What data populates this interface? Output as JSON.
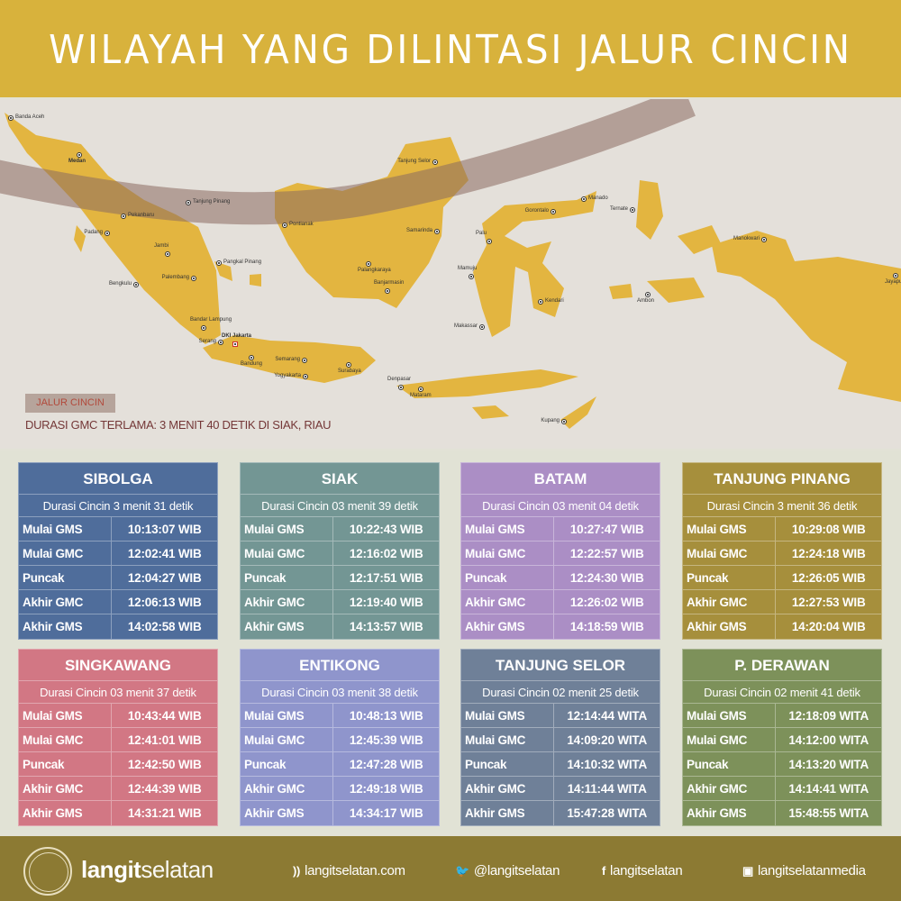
{
  "header": {
    "title": "WILAYAH YANG DILINTASI JALUR CINCIN"
  },
  "map": {
    "land_color": "#e3b540",
    "path_color": "#8a6a60",
    "cities": [
      "Banda Aceh",
      "Medan",
      "Tanjung Pinang",
      "Pekanbaru",
      "Padang",
      "Jambi",
      "Pangkal Pinang",
      "Palembang",
      "Bengkulu",
      "Bandar Lampung",
      "Serang",
      "DKI Jakarta",
      "Bandung",
      "Semarang",
      "Yogyakarta",
      "Surabaya",
      "Denpasar",
      "Mataram",
      "Pontianak",
      "Samarinda",
      "Palangkaraya",
      "Banjarmasin",
      "Tanjung Selor",
      "Gorontalo",
      "Manado",
      "Palu",
      "Mamuju",
      "Kendari",
      "Makassar",
      "Ternate",
      "Manokwari",
      "Ambon",
      "Jayapura",
      "Kupang"
    ],
    "legend_label": "JALUR CINCIN",
    "note": "DURASI GMC TERLAMA: 3 MENIT 40 DETIK DI SIAK, RIAU"
  },
  "tables": [
    {
      "name": "SIBOLGA",
      "color": "#4f6d9b",
      "duration": "Durasi Cincin 3 menit 31 detik",
      "rows": [
        {
          "label": "Mulai GMS",
          "time": "10:13:07 WIB"
        },
        {
          "label": "Mulai GMC",
          "time": "12:02:41 WIB"
        },
        {
          "label": "Puncak",
          "time": "12:04:27 WIB"
        },
        {
          "label": "Akhir GMC",
          "time": "12:06:13  WIB"
        },
        {
          "label": "Akhir GMS",
          "time": "14:02:58 WIB"
        }
      ]
    },
    {
      "name": "SIAK",
      "color": "#739694",
      "duration": "Durasi Cincin 03 menit 39 detik",
      "rows": [
        {
          "label": "Mulai GMS",
          "time": "10:22:43 WIB"
        },
        {
          "label": "Mulai GMC",
          "time": "12:16:02 WIB"
        },
        {
          "label": "Puncak",
          "time": "12:17:51 WIB"
        },
        {
          "label": "Akhir GMC",
          "time": "12:19:40 WIB"
        },
        {
          "label": "Akhir GMS",
          "time": "14:13:57 WIB"
        }
      ]
    },
    {
      "name": "BATAM",
      "color": "#ab8ec5",
      "duration": "Durasi Cincin 03 menit 04 detik",
      "rows": [
        {
          "label": "Mulai GMS",
          "time": "10:27:47 WIB"
        },
        {
          "label": "Mulai GMC",
          "time": "12:22:57 WIB"
        },
        {
          "label": "Puncak",
          "time": "12:24:30 WIB"
        },
        {
          "label": "Akhir GMC",
          "time": "12:26:02 WIB"
        },
        {
          "label": "Akhir GMS",
          "time": "14:18:59 WIB"
        }
      ]
    },
    {
      "name": "TANJUNG PINANG",
      "color": "#a68f3c",
      "duration": "Durasi Cincin 3 menit 36 detik",
      "rows": [
        {
          "label": "Mulai GMS",
          "time": "10:29:08 WIB"
        },
        {
          "label": "Mulai GMC",
          "time": "12:24:18 WIB"
        },
        {
          "label": "Puncak",
          "time": "12:26:05 WIB"
        },
        {
          "label": "Akhir GMC",
          "time": "12:27:53 WIB"
        },
        {
          "label": "Akhir GMS",
          "time": "14:20:04 WIB"
        }
      ]
    },
    {
      "name": "SINGKAWANG",
      "color": "#d27784",
      "duration": "Durasi Cincin 03 menit 37 detik",
      "rows": [
        {
          "label": "Mulai GMS",
          "time": "10:43:44 WIB"
        },
        {
          "label": "Mulai GMC",
          "time": "12:41:01 WIB"
        },
        {
          "label": "Puncak",
          "time": "12:42:50 WIB"
        },
        {
          "label": "Akhir GMC",
          "time": "12:44:39 WIB"
        },
        {
          "label": "Akhir GMS",
          "time": "14:31:21 WIB"
        }
      ]
    },
    {
      "name": "ENTIKONG",
      "color": "#8f95cc",
      "duration": "Durasi Cincin 03 menit 38 detik",
      "rows": [
        {
          "label": "Mulai GMS",
          "time": "10:48:13 WIB"
        },
        {
          "label": "Mulai GMC",
          "time": "12:45:39 WIB"
        },
        {
          "label": "Puncak",
          "time": "12:47:28 WIB"
        },
        {
          "label": "Akhir GMC",
          "time": "12:49:18 WIB"
        },
        {
          "label": "Akhir GMS",
          "time": "14:34:17 WIB"
        }
      ]
    },
    {
      "name": "TANJUNG SELOR",
      "color": "#6f8098",
      "duration": "Durasi Cincin 02 menit 25 detik",
      "rows": [
        {
          "label": "Mulai GMS",
          "time": "12:14:44 WITA"
        },
        {
          "label": "Mulai GMC",
          "time": "14:09:20 WITA"
        },
        {
          "label": "Puncak",
          "time": "14:10:32 WITA"
        },
        {
          "label": "Akhir GMC",
          "time": "14:11:44 WITA"
        },
        {
          "label": "Akhir GMS",
          "time": "15:47:28 WITA"
        }
      ]
    },
    {
      "name": "P. DERAWAN",
      "color": "#7d915a",
      "duration": "Durasi Cincin 02 menit 41 detik",
      "rows": [
        {
          "label": "Mulai GMS",
          "time": "12:18:09 WITA"
        },
        {
          "label": "Mulai GMC",
          "time": "14:12:00 WITA"
        },
        {
          "label": "Puncak",
          "time": "14:13:20 WITA"
        },
        {
          "label": "Akhir GMC",
          "time": "14:14:41 WITA"
        },
        {
          "label": "Akhir GMS",
          "time": "15:48:55 WITA"
        }
      ]
    }
  ],
  "footer": {
    "brand_bold": "langit",
    "brand_light": "selatan",
    "links": [
      {
        "icon": "rss-icon",
        "label": "langitselatan.com"
      },
      {
        "icon": "twitter-icon",
        "label": "@langitselatan"
      },
      {
        "icon": "facebook-icon",
        "label": "langitselatan"
      },
      {
        "icon": "instagram-icon",
        "label": "langitselatanmedia"
      }
    ]
  }
}
